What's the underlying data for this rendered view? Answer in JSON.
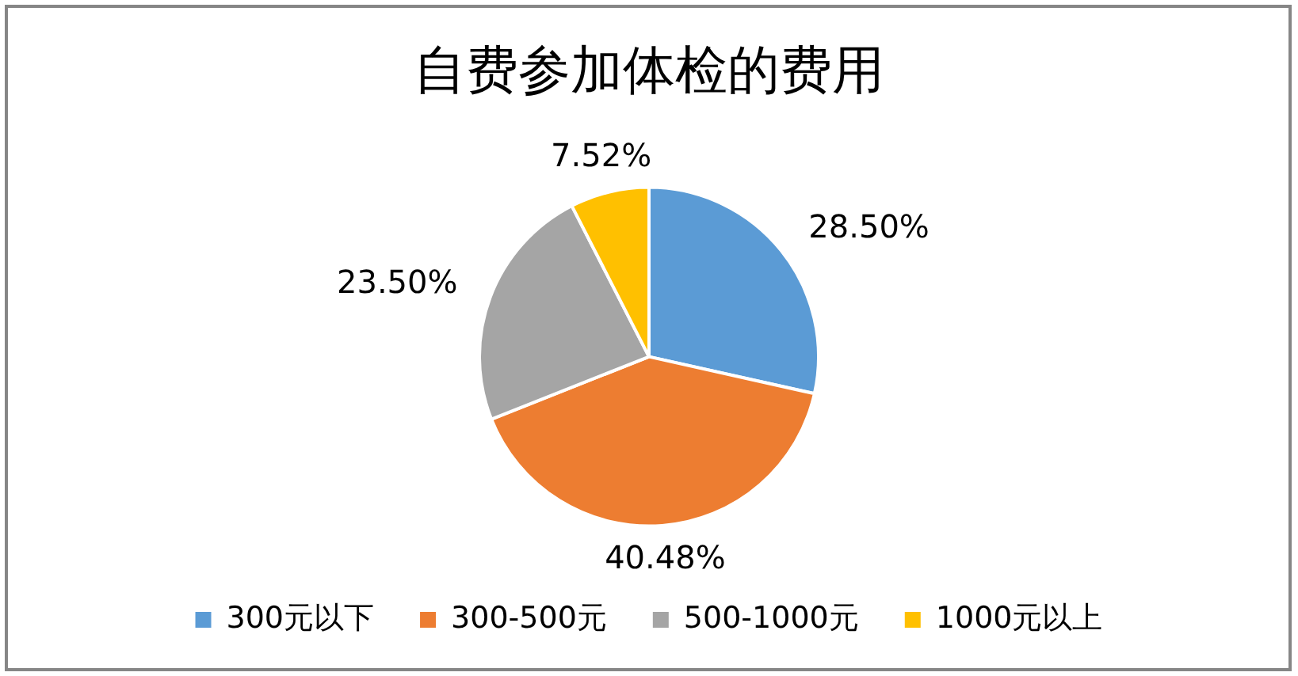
{
  "chart_data": {
    "type": "pie",
    "title": "自费参加体检的费用",
    "categories": [
      "300元以下",
      "300-500元",
      "500-1000元",
      "1000元以上"
    ],
    "values": [
      28.5,
      40.48,
      23.5,
      7.52
    ],
    "colors": [
      "#5b9bd5",
      "#ed7d31",
      "#a5a5a5",
      "#ffc000"
    ],
    "value_labels": [
      "28.50%",
      "40.48%",
      "23.50%",
      "7.52%"
    ],
    "legend": "bottom"
  }
}
